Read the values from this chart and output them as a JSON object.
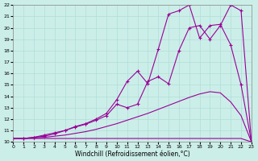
{
  "xlabel": "Windchill (Refroidissement éolien,°C)",
  "background_color": "#cceee8",
  "grid_color": "#b0ddd8",
  "line_color": "#990099",
  "xlim": [
    0,
    23
  ],
  "ylim": [
    10,
    22
  ],
  "xticks": [
    0,
    1,
    2,
    3,
    4,
    5,
    6,
    7,
    8,
    9,
    10,
    11,
    12,
    13,
    14,
    15,
    16,
    17,
    18,
    19,
    20,
    21,
    22,
    23
  ],
  "yticks": [
    10,
    11,
    12,
    13,
    14,
    15,
    16,
    17,
    18,
    19,
    20,
    21,
    22
  ],
  "flat_x": [
    0,
    1,
    2,
    3,
    4,
    5,
    6,
    7,
    8,
    9,
    10,
    11,
    12,
    13,
    14,
    15,
    16,
    17,
    18,
    19,
    20,
    21,
    22,
    23
  ],
  "flat_y": [
    10.3,
    10.3,
    10.3,
    10.3,
    10.3,
    10.3,
    10.3,
    10.3,
    10.3,
    10.3,
    10.3,
    10.3,
    10.3,
    10.3,
    10.3,
    10.3,
    10.3,
    10.3,
    10.3,
    10.3,
    10.3,
    10.3,
    10.3,
    10.0
  ],
  "diag_x": [
    0,
    1,
    2,
    3,
    4,
    5,
    6,
    7,
    8,
    9,
    10,
    11,
    12,
    13,
    14,
    15,
    16,
    17,
    18,
    19,
    20,
    21,
    22,
    23
  ],
  "diag_y": [
    10.3,
    10.3,
    10.35,
    10.4,
    10.5,
    10.6,
    10.75,
    10.9,
    11.1,
    11.35,
    11.6,
    11.9,
    12.2,
    12.5,
    12.85,
    13.2,
    13.55,
    13.9,
    14.2,
    14.4,
    14.3,
    13.5,
    12.3,
    10.0
  ],
  "curve_marked1_x": [
    0,
    1,
    2,
    3,
    4,
    5,
    6,
    7,
    8,
    9,
    10,
    11,
    12,
    13,
    14,
    15,
    16,
    17,
    18,
    19,
    20,
    21,
    22,
    23
  ],
  "curve_marked1_y": [
    10.3,
    10.3,
    10.4,
    10.5,
    10.7,
    11.0,
    11.3,
    11.55,
    11.9,
    12.3,
    13.3,
    13.0,
    13.3,
    15.3,
    15.7,
    15.1,
    18.0,
    20.0,
    20.2,
    19.0,
    20.2,
    22.0,
    21.5,
    10.0
  ],
  "curve_marked2_x": [
    0,
    1,
    2,
    3,
    4,
    5,
    6,
    7,
    8,
    9,
    10,
    11,
    12,
    13,
    14,
    15,
    16,
    17,
    18,
    19,
    20,
    21,
    22,
    23
  ],
  "curve_marked2_y": [
    10.3,
    10.3,
    10.4,
    10.6,
    10.8,
    11.0,
    11.35,
    11.6,
    12.0,
    12.5,
    13.7,
    15.3,
    16.2,
    15.1,
    18.1,
    21.2,
    21.5,
    22.0,
    19.1,
    20.2,
    20.3,
    18.5,
    15.0,
    10.0
  ]
}
